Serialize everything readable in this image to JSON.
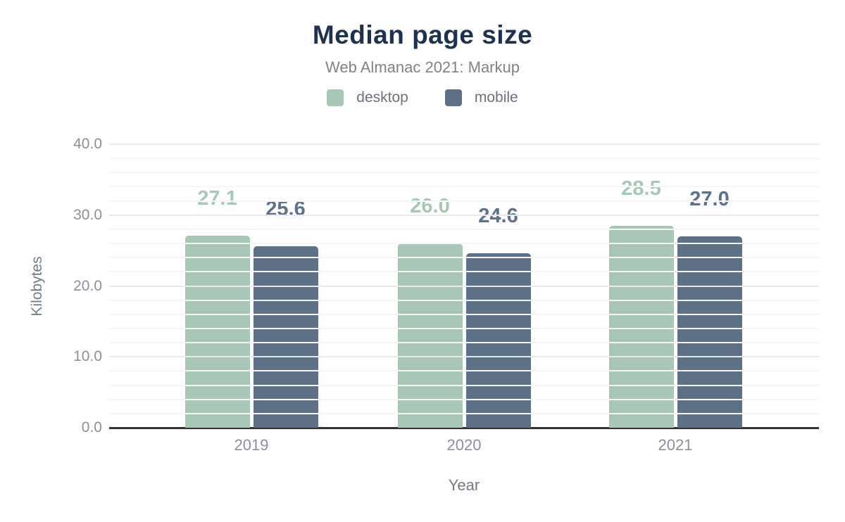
{
  "chart_data": {
    "type": "bar",
    "title": "Median page size",
    "subtitle": "Web Almanac 2021: Markup",
    "xlabel": "Year",
    "ylabel": "Kilobytes",
    "categories": [
      "2019",
      "2020",
      "2021"
    ],
    "series": [
      {
        "name": "desktop",
        "color": "#a7c8b7",
        "values": [
          27.1,
          26.0,
          28.5
        ],
        "labels": [
          "27.1",
          "26.0",
          "28.5"
        ]
      },
      {
        "name": "mobile",
        "color": "#5e7189",
        "values": [
          25.6,
          24.6,
          27.0
        ],
        "labels": [
          "25.6",
          "24.6",
          "27.0"
        ]
      }
    ],
    "ylim": [
      0,
      40
    ],
    "yticks": [
      {
        "label": "0.0",
        "value": 0
      },
      {
        "label": "10.0",
        "value": 10
      },
      {
        "label": "20.0",
        "value": 20
      },
      {
        "label": "30.0",
        "value": 30
      },
      {
        "label": "40.0",
        "value": 40
      }
    ],
    "minor_gridline_step": 2,
    "grid": true,
    "legend_position": "top",
    "colors": {
      "title": "#1e3250",
      "subtitle": "#7d8389",
      "legend_text": "#6d7278",
      "tick_label": "#8b9197",
      "axis_title": "#757b82",
      "axis_line": "#333333",
      "major_grid": "#e9e9e9",
      "minor_grid": "#f6f6f6",
      "background": "#ffffff"
    }
  }
}
